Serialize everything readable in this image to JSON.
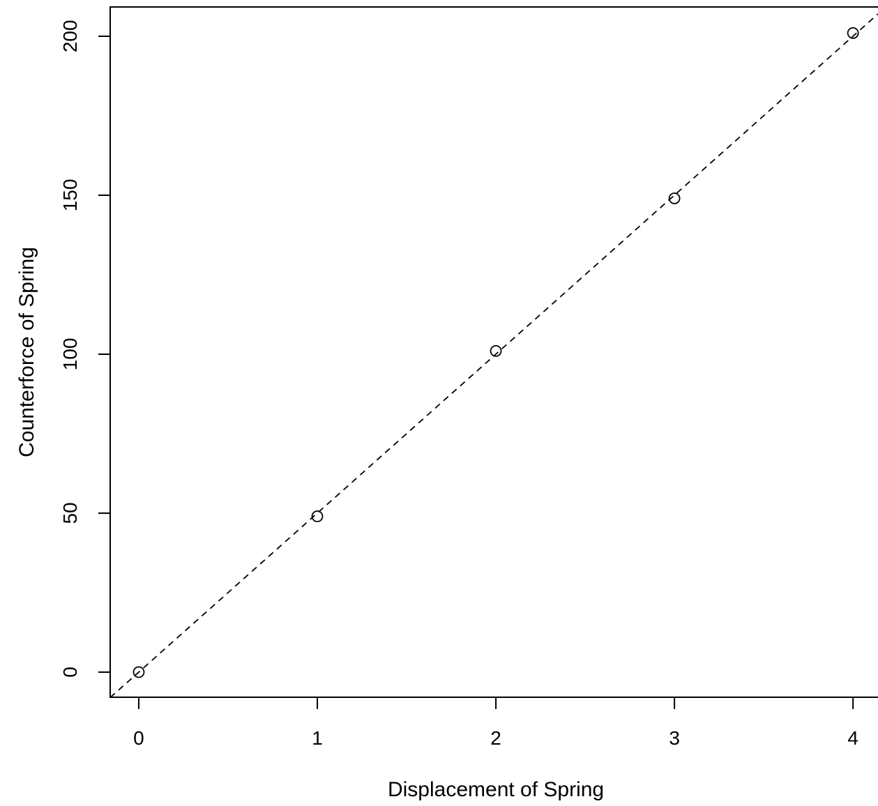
{
  "chart_data": {
    "type": "scatter",
    "title": "",
    "xlabel": "Displacement of Spring",
    "ylabel": "Counterforce of Spring",
    "xlim": [
      -0.16,
      4.14
    ],
    "ylim": [
      -7.9,
      209.2
    ],
    "x_ticks": [
      0,
      1,
      2,
      3,
      4
    ],
    "y_ticks": [
      0,
      50,
      100,
      150,
      200
    ],
    "x_tick_labels": [
      "0",
      "1",
      "2",
      "3",
      "4"
    ],
    "y_tick_labels": [
      "0",
      "50",
      "100",
      "150",
      "200"
    ],
    "series": [
      {
        "marker": "open-circle",
        "x": [
          0,
          1,
          2,
          3,
          4
        ],
        "y": [
          0,
          49,
          101,
          149,
          201
        ]
      }
    ],
    "reference_line": {
      "style": "dashed",
      "intercept": 0,
      "slope": 50
    },
    "grid": false,
    "legend": "none",
    "colors": {
      "points": "#000000",
      "line": "#000000",
      "frame": "#000000"
    }
  }
}
